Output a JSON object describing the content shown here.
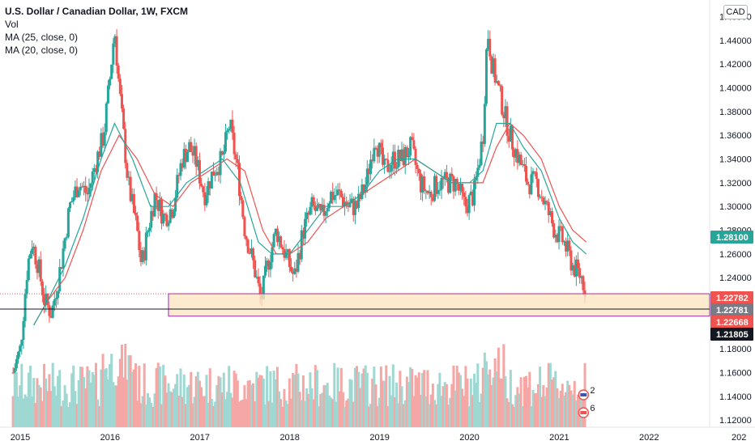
{
  "legend": {
    "title": "U.S. Dollar / Canadian Dollar, 1W, FXCM",
    "line2": "Vol",
    "line3": "MA (25, close, 0)",
    "line4": "MA (20, close, 0)"
  },
  "currency_button": "CAD",
  "colors": {
    "up": "#26a69a",
    "down": "#ef5350",
    "vol_up": "#9fd8d2",
    "vol_down": "#f5a7a5",
    "ma25": "#ef5350",
    "ma20": "#26a69a",
    "zone_fill": "#fde6c3",
    "zone_border": "#9c27b0",
    "label_green": "#26a69a",
    "label_red": "#ef5350",
    "label_gray": "#787b86",
    "label_black": "#131722"
  },
  "chart_data": {
    "type": "candlestick",
    "symbol": "USDCAD",
    "timeframe": "1W",
    "x_ticks": [
      "2015",
      "2016",
      "2017",
      "2018",
      "2019",
      "2020",
      "2021",
      "2022",
      "202"
    ],
    "y_ticks": [
      "1.46000",
      "1.44000",
      "1.42000",
      "1.40000",
      "1.38000",
      "1.36000",
      "1.34000",
      "1.32000",
      "1.30000",
      "1.28000",
      "1.26000",
      "1.24000",
      "1.22000",
      "1.20000",
      "1.18000",
      "1.16000",
      "1.14000",
      "1.12000"
    ],
    "ylim": [
      1.115,
      1.48
    ],
    "xlim": [
      2014.9,
      2022.1
    ],
    "close_path": [
      [
        2014.92,
        1.16
      ],
      [
        2015.0,
        1.18
      ],
      [
        2015.08,
        1.25
      ],
      [
        2015.13,
        1.27
      ],
      [
        2015.2,
        1.25
      ],
      [
        2015.27,
        1.22
      ],
      [
        2015.35,
        1.21
      ],
      [
        2015.45,
        1.25
      ],
      [
        2015.55,
        1.3
      ],
      [
        2015.65,
        1.32
      ],
      [
        2015.75,
        1.31
      ],
      [
        2015.85,
        1.34
      ],
      [
        2015.93,
        1.36
      ],
      [
        2016.0,
        1.41
      ],
      [
        2016.05,
        1.45
      ],
      [
        2016.1,
        1.4
      ],
      [
        2016.2,
        1.32
      ],
      [
        2016.3,
        1.28
      ],
      [
        2016.35,
        1.25
      ],
      [
        2016.42,
        1.28
      ],
      [
        2016.5,
        1.31
      ],
      [
        2016.6,
        1.29
      ],
      [
        2016.7,
        1.3
      ],
      [
        2016.8,
        1.34
      ],
      [
        2016.88,
        1.35
      ],
      [
        2016.95,
        1.34
      ],
      [
        2017.05,
        1.31
      ],
      [
        2017.15,
        1.33
      ],
      [
        2017.25,
        1.34
      ],
      [
        2017.33,
        1.37
      ],
      [
        2017.42,
        1.33
      ],
      [
        2017.5,
        1.28
      ],
      [
        2017.6,
        1.25
      ],
      [
        2017.68,
        1.22
      ],
      [
        2017.75,
        1.25
      ],
      [
        2017.85,
        1.28
      ],
      [
        2017.95,
        1.26
      ],
      [
        2018.05,
        1.24
      ],
      [
        2018.15,
        1.28
      ],
      [
        2018.25,
        1.3
      ],
      [
        2018.35,
        1.29
      ],
      [
        2018.45,
        1.31
      ],
      [
        2018.55,
        1.31
      ],
      [
        2018.65,
        1.3
      ],
      [
        2018.75,
        1.3
      ],
      [
        2018.85,
        1.32
      ],
      [
        2018.95,
        1.36
      ],
      [
        2019.05,
        1.33
      ],
      [
        2019.15,
        1.34
      ],
      [
        2019.25,
        1.34
      ],
      [
        2019.35,
        1.35
      ],
      [
        2019.45,
        1.32
      ],
      [
        2019.55,
        1.31
      ],
      [
        2019.65,
        1.32
      ],
      [
        2019.75,
        1.32
      ],
      [
        2019.85,
        1.32
      ],
      [
        2019.95,
        1.3
      ],
      [
        2020.05,
        1.31
      ],
      [
        2020.15,
        1.36
      ],
      [
        2020.2,
        1.45
      ],
      [
        2020.25,
        1.42
      ],
      [
        2020.35,
        1.39
      ],
      [
        2020.45,
        1.36
      ],
      [
        2020.55,
        1.34
      ],
      [
        2020.65,
        1.32
      ],
      [
        2020.75,
        1.32
      ],
      [
        2020.85,
        1.3
      ],
      [
        2020.95,
        1.28
      ],
      [
        2021.05,
        1.27
      ],
      [
        2021.15,
        1.25
      ],
      [
        2021.25,
        1.24
      ],
      [
        2021.3,
        1.228
      ]
    ],
    "ma25_path": [
      [
        2015.15,
        1.2
      ],
      [
        2015.3,
        1.22
      ],
      [
        2015.5,
        1.24
      ],
      [
        2015.7,
        1.28
      ],
      [
        2015.9,
        1.33
      ],
      [
        2016.1,
        1.36
      ],
      [
        2016.3,
        1.34
      ],
      [
        2016.5,
        1.31
      ],
      [
        2016.7,
        1.3
      ],
      [
        2016.9,
        1.32
      ],
      [
        2017.1,
        1.33
      ],
      [
        2017.3,
        1.34
      ],
      [
        2017.5,
        1.33
      ],
      [
        2017.7,
        1.28
      ],
      [
        2017.85,
        1.26
      ],
      [
        2018.0,
        1.26
      ],
      [
        2018.2,
        1.27
      ],
      [
        2018.4,
        1.29
      ],
      [
        2018.6,
        1.3
      ],
      [
        2018.8,
        1.31
      ],
      [
        2019.0,
        1.32
      ],
      [
        2019.2,
        1.33
      ],
      [
        2019.4,
        1.34
      ],
      [
        2019.6,
        1.33
      ],
      [
        2019.8,
        1.32
      ],
      [
        2020.0,
        1.32
      ],
      [
        2020.15,
        1.32
      ],
      [
        2020.3,
        1.35
      ],
      [
        2020.45,
        1.37
      ],
      [
        2020.6,
        1.36
      ],
      [
        2020.8,
        1.34
      ],
      [
        2021.0,
        1.3
      ],
      [
        2021.15,
        1.28
      ],
      [
        2021.3,
        1.27
      ]
    ],
    "ma20_path": [
      [
        2015.15,
        1.2
      ],
      [
        2015.3,
        1.22
      ],
      [
        2015.5,
        1.25
      ],
      [
        2015.7,
        1.29
      ],
      [
        2015.9,
        1.34
      ],
      [
        2016.05,
        1.37
      ],
      [
        2016.25,
        1.34
      ],
      [
        2016.45,
        1.3
      ],
      [
        2016.65,
        1.3
      ],
      [
        2016.85,
        1.32
      ],
      [
        2017.05,
        1.33
      ],
      [
        2017.25,
        1.34
      ],
      [
        2017.45,
        1.32
      ],
      [
        2017.65,
        1.27
      ],
      [
        2017.8,
        1.26
      ],
      [
        2018.0,
        1.26
      ],
      [
        2018.2,
        1.28
      ],
      [
        2018.4,
        1.3
      ],
      [
        2018.6,
        1.3
      ],
      [
        2018.8,
        1.31
      ],
      [
        2019.0,
        1.33
      ],
      [
        2019.2,
        1.34
      ],
      [
        2019.4,
        1.34
      ],
      [
        2019.6,
        1.33
      ],
      [
        2019.8,
        1.32
      ],
      [
        2020.0,
        1.32
      ],
      [
        2020.15,
        1.33
      ],
      [
        2020.3,
        1.37
      ],
      [
        2020.45,
        1.37
      ],
      [
        2020.6,
        1.35
      ],
      [
        2020.8,
        1.33
      ],
      [
        2021.0,
        1.29
      ],
      [
        2021.15,
        1.27
      ],
      [
        2021.3,
        1.26
      ]
    ],
    "zone": {
      "x_start": 2016.65,
      "y_top": 1.22782,
      "y_bottom": 1.22668
    },
    "crosshair_price": 1.22781,
    "price_labels": [
      {
        "text": "1.28100",
        "value": 1.281,
        "color": "label_green"
      },
      {
        "text": "1.22782",
        "value": 1.22782,
        "color": "label_red"
      },
      {
        "text": "1.22781",
        "value": 1.22781,
        "color": "label_gray"
      },
      {
        "text": "1.22668",
        "value": 1.22668,
        "color": "label_red"
      },
      {
        "text": "1.21805",
        "value": 1.21805,
        "color": "label_black"
      }
    ],
    "volume_max_label": "",
    "markers": [
      {
        "text": "2",
        "x": 2021.27,
        "y": 1.145
      },
      {
        "text": "6",
        "x": 2021.27,
        "y": 1.132
      }
    ]
  }
}
